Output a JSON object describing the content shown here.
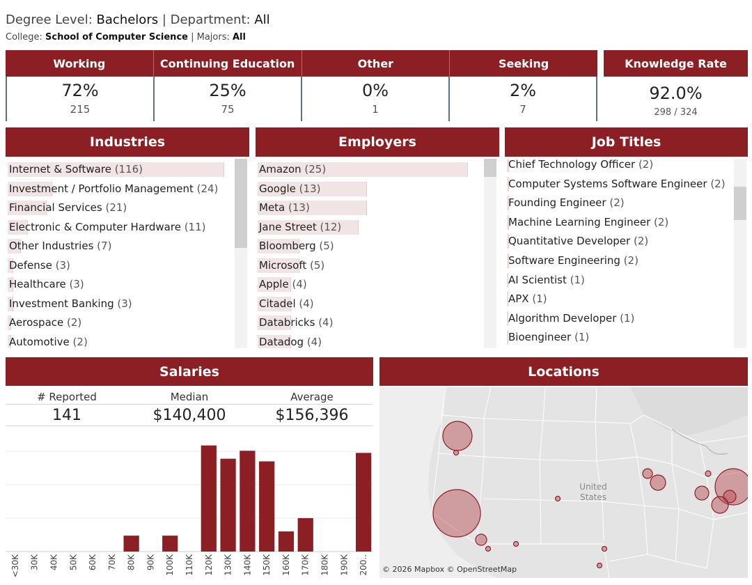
{
  "filters": {
    "degree_label": "Degree Level: ",
    "degree_value": "Bachelors",
    "sep": " | ",
    "department_label": "Department: ",
    "department_value": "All",
    "college_label": "College: ",
    "college_value": "School of Computer Science",
    "majors_sep": " | Majors: ",
    "majors_value": "All"
  },
  "outcomes": [
    {
      "label": "Working",
      "pct": "72%",
      "count": "215"
    },
    {
      "label": "Continuing Education",
      "pct": "25%",
      "count": "75"
    },
    {
      "label": "Other",
      "pct": "0%",
      "count": "1"
    },
    {
      "label": "Seeking",
      "pct": "2%",
      "count": "7"
    }
  ],
  "knowledge_rate": {
    "label": "Knowledge Rate",
    "value": "92.0%",
    "sub": "298 / 324"
  },
  "industries": {
    "title": "Industries",
    "items": [
      {
        "name": "Internet & Software",
        "count": "(116)",
        "value": 116
      },
      {
        "name": "Investment / Portfolio Management",
        "count": "(24)",
        "value": 24
      },
      {
        "name": "Financial Services",
        "count": "(21)",
        "value": 21
      },
      {
        "name": "Electronic & Computer Hardware",
        "count": "(11)",
        "value": 11
      },
      {
        "name": "Other Industries",
        "count": "(7)",
        "value": 7
      },
      {
        "name": "Defense",
        "count": "(3)",
        "value": 3
      },
      {
        "name": "Healthcare",
        "count": "(3)",
        "value": 3
      },
      {
        "name": "Investment Banking",
        "count": "(3)",
        "value": 3
      },
      {
        "name": "Aerospace",
        "count": "(2)",
        "value": 2
      },
      {
        "name": "Automotive",
        "count": "(2)",
        "value": 2
      }
    ]
  },
  "employers": {
    "title": "Employers",
    "items": [
      {
        "name": "Amazon",
        "count": "(25)",
        "value": 25
      },
      {
        "name": "Google",
        "count": "(13)",
        "value": 13
      },
      {
        "name": "Meta",
        "count": "(13)",
        "value": 13
      },
      {
        "name": "Jane Street",
        "count": "(12)",
        "value": 12
      },
      {
        "name": "Bloomberg",
        "count": "(5)",
        "value": 5
      },
      {
        "name": "Microsoft",
        "count": "(5)",
        "value": 5
      },
      {
        "name": "Apple",
        "count": "(4)",
        "value": 4
      },
      {
        "name": "Citadel",
        "count": "(4)",
        "value": 4
      },
      {
        "name": "Databricks",
        "count": "(4)",
        "value": 4
      },
      {
        "name": "Datadog",
        "count": "(4)",
        "value": 4
      }
    ]
  },
  "job_titles": {
    "title": "Job Titles",
    "items": [
      {
        "name": "Chief Technology Officer",
        "count": "(2)",
        "value": 2
      },
      {
        "name": "Computer Systems Software Engineer",
        "count": "(2)",
        "value": 2
      },
      {
        "name": "Founding Engineer",
        "count": "(2)",
        "value": 2
      },
      {
        "name": "Machine Learning Engineer",
        "count": "(2)",
        "value": 2
      },
      {
        "name": "Quantitative Developer",
        "count": "(2)",
        "value": 2
      },
      {
        "name": "Software Engineering",
        "count": "(2)",
        "value": 2
      },
      {
        "name": "AI Scientist",
        "count": "(1)",
        "value": 1
      },
      {
        "name": "APX",
        "count": "(1)",
        "value": 1
      },
      {
        "name": "Algorithm Developer",
        "count": "(1)",
        "value": 1
      },
      {
        "name": "Bioengineer",
        "count": "(1)",
        "value": 1
      }
    ]
  },
  "salaries": {
    "title": "Salaries",
    "reported_label": "# Reported",
    "reported_value": "141",
    "median_label": "Median",
    "median_value": "$140,400",
    "average_label": "Average",
    "average_value": "$156,396"
  },
  "locations": {
    "title": "Locations",
    "map_label": "United States",
    "credit": "© 2026 Mapbox  © OpenStreetMap"
  },
  "colors": {
    "accent": "#8b1f24",
    "bar_fill": "#f1e4e5",
    "map_bg": "#e4e4e4",
    "bubble": "#b5474c"
  },
  "chart_data": {
    "type": "bar",
    "categories": [
      "<30K",
      "30K",
      "40K",
      "50K",
      "60K",
      "70K",
      "80K",
      "90K",
      "100K",
      "110K",
      "120K",
      "130K",
      "140K",
      "150K",
      "160K",
      "170K",
      "180K",
      "190K",
      "200.."
    ],
    "values": [
      0,
      0,
      0,
      0,
      0,
      0,
      3,
      0,
      3,
      0,
      20,
      17.5,
      19,
      17,
      3.8,
      6.3,
      0,
      0,
      18.6
    ],
    "title": "",
    "xlabel": "",
    "ylabel": "",
    "ylim": [
      0,
      21
    ],
    "grid": true
  }
}
